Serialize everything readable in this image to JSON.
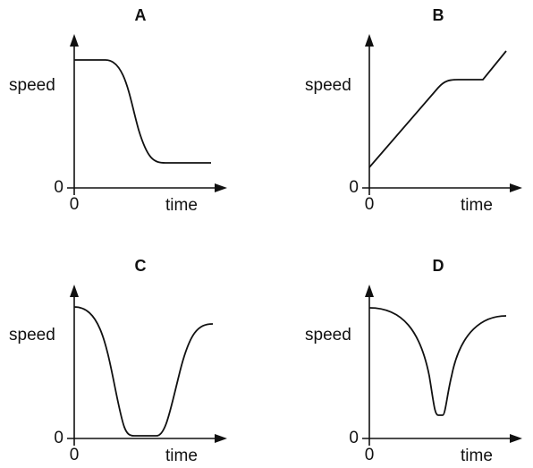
{
  "panels": [
    {
      "title": "A",
      "y_label": "speed",
      "x_label": "time",
      "y_origin": "0",
      "x_origin": "0"
    },
    {
      "title": "B",
      "y_label": "speed",
      "x_label": "time",
      "y_origin": "0",
      "x_origin": "0"
    },
    {
      "title": "C",
      "y_label": "speed",
      "x_label": "time",
      "y_origin": "0",
      "x_origin": "0"
    },
    {
      "title": "D",
      "y_label": "speed",
      "x_label": "time",
      "y_origin": "0",
      "x_origin": "0"
    }
  ]
}
